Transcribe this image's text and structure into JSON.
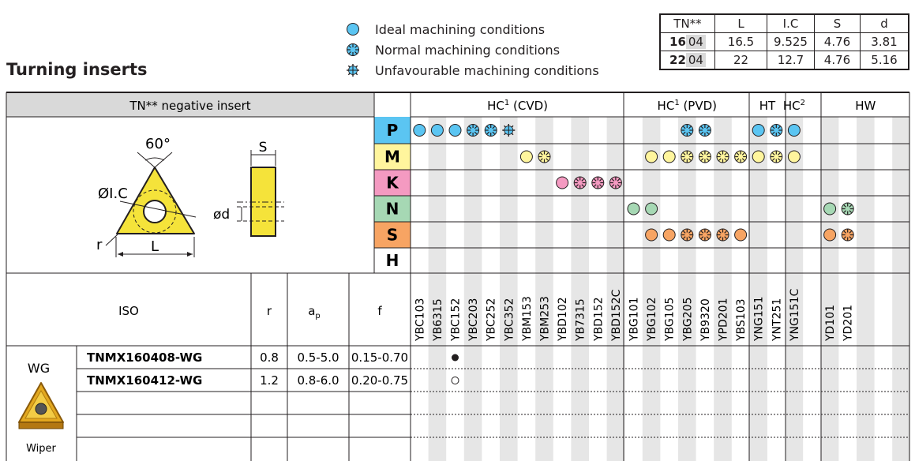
{
  "title": "Turning inserts",
  "legend": [
    {
      "icon": "ideal-icon",
      "label": "Ideal machining conditions"
    },
    {
      "icon": "normal-icon",
      "label": "Normal machining conditions"
    },
    {
      "icon": "unfavourable-icon",
      "label": "Unfavourable machining conditions"
    }
  ],
  "dims": {
    "headers": [
      "TN**",
      "L",
      "I.C",
      "S",
      "d"
    ],
    "rows": [
      {
        "tn_bold": "16",
        "tn_gray": "04",
        "L": "16.5",
        "IC": "9.525",
        "S": "4.76",
        "d": "3.81"
      },
      {
        "tn_bold": "22",
        "tn_gray": "04",
        "L": "22",
        "IC": "12.7",
        "S": "4.76",
        "d": "5.16"
      }
    ]
  },
  "insert_header": "TN** negative insert",
  "drawing_labels": {
    "angle": "60°",
    "ic": "ØI.C",
    "r": "r",
    "l": "L",
    "s": "S",
    "d": "ød"
  },
  "groups": [
    {
      "label": "HC",
      "sup": "1",
      "suffix": " (CVD)"
    },
    {
      "label": "HC",
      "sup": "1",
      "suffix": " (PVD)"
    },
    {
      "label": "HT",
      "sup": "",
      "suffix": ""
    },
    {
      "label": "HC",
      "sup": "2",
      "suffix": ""
    },
    {
      "label": "HW",
      "sup": "",
      "suffix": ""
    }
  ],
  "materials": [
    "P",
    "M",
    "K",
    "N",
    "S",
    "H"
  ],
  "material_colors": {
    "P": "#5bc5f2",
    "M": "#fff59d",
    "K": "#f49ac1",
    "N": "#a6d8b4",
    "S": "#f7a463",
    "H": "#ffffff"
  },
  "grades": [
    "YBC103",
    "YB6315",
    "YBC152",
    "YBC203",
    "YBC252",
    "YBC352",
    "YBM153",
    "YBM253",
    "YBD102",
    "YB7315",
    "YBD152",
    "YBD152C",
    "YBG101",
    "YBG102",
    "YBG105",
    "YBG205",
    "YB9320",
    "YPD201",
    "YBS103",
    "YNG151",
    "YNT251",
    "YNG151C",
    "",
    "YD101",
    "YD201",
    "",
    "",
    "",
    ""
  ],
  "suitability": {
    "P": [
      [
        0,
        "i"
      ],
      [
        1,
        "i"
      ],
      [
        2,
        "i"
      ],
      [
        3,
        "n"
      ],
      [
        4,
        "n"
      ],
      [
        5,
        "u"
      ],
      [
        15,
        "n"
      ],
      [
        16,
        "n"
      ],
      [
        19,
        "i"
      ],
      [
        20,
        "n"
      ],
      [
        21,
        "i"
      ]
    ],
    "M": [
      [
        6,
        "i"
      ],
      [
        7,
        "n"
      ],
      [
        13,
        "i"
      ],
      [
        14,
        "i"
      ],
      [
        15,
        "n"
      ],
      [
        16,
        "n"
      ],
      [
        17,
        "n"
      ],
      [
        18,
        "n"
      ],
      [
        19,
        "i"
      ],
      [
        20,
        "n"
      ],
      [
        21,
        "i"
      ]
    ],
    "K": [
      [
        8,
        "i"
      ],
      [
        9,
        "n"
      ],
      [
        10,
        "n"
      ],
      [
        11,
        "n"
      ]
    ],
    "N": [
      [
        12,
        "i"
      ],
      [
        13,
        "i"
      ],
      [
        23,
        "i"
      ],
      [
        24,
        "n"
      ]
    ],
    "S": [
      [
        13,
        "i"
      ],
      [
        14,
        "i"
      ],
      [
        15,
        "n"
      ],
      [
        16,
        "n"
      ],
      [
        17,
        "n"
      ],
      [
        18,
        "i"
      ],
      [
        23,
        "i"
      ],
      [
        24,
        "n"
      ]
    ],
    "H": []
  },
  "columns": {
    "iso": "ISO",
    "r": "r",
    "ap": "a",
    "ap_sub": "p",
    "f": "f"
  },
  "family": {
    "name": "WG",
    "caption": "Wiper"
  },
  "products": [
    {
      "iso": "TNMX160408-WG",
      "r": "0.8",
      "ap": "0.5-5.0",
      "f": "0.15-0.70",
      "mark_col": 2,
      "mark": "filled"
    },
    {
      "iso": "TNMX160412-WG",
      "r": "1.2",
      "ap": "0.8-6.0",
      "f": "0.20-0.75",
      "mark_col": 2,
      "mark": "open"
    }
  ]
}
